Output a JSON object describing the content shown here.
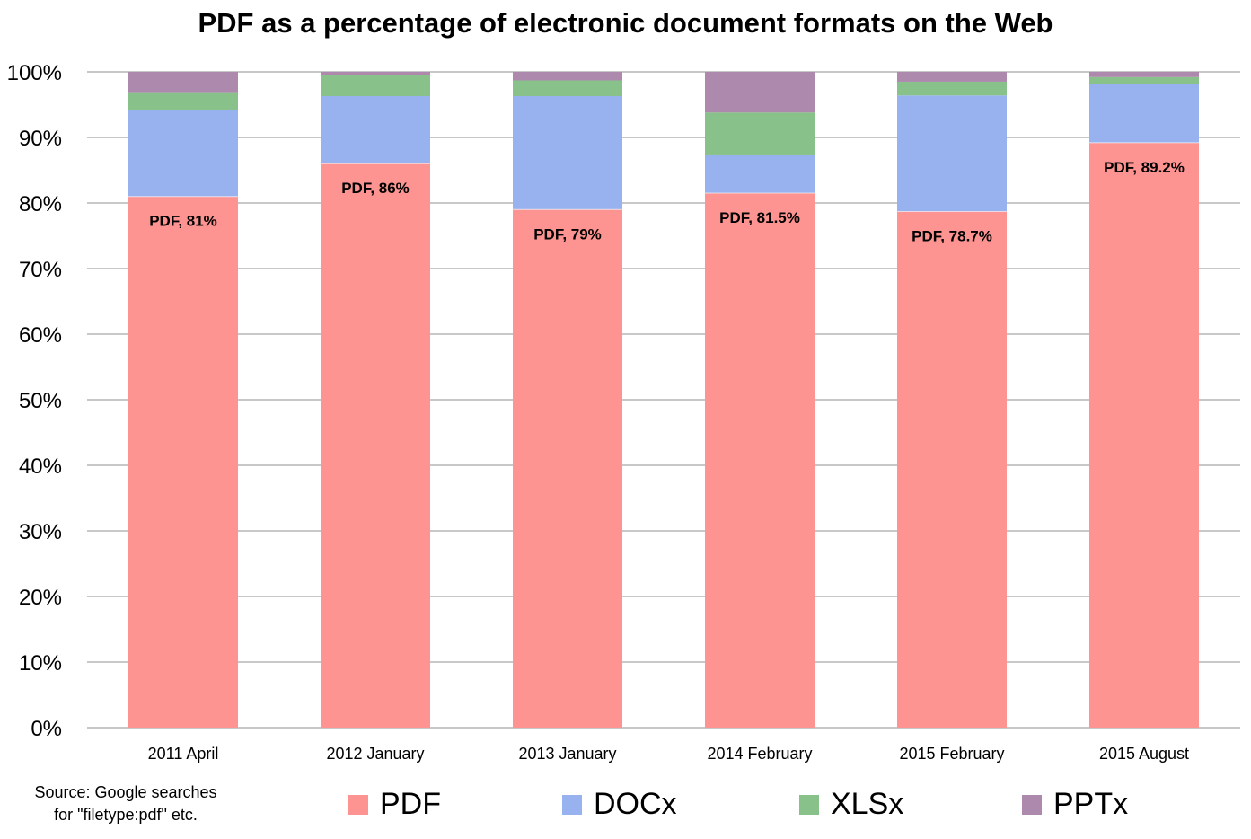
{
  "colors": {
    "PDF": "#fe9491",
    "DOCx": "#97b2ee",
    "XLSx": "#88c28a",
    "PPTx": "#ad89ae",
    "grid": "#a6a6a6",
    "separator": "#ffffff"
  },
  "source_note": {
    "line1": "Source: Google searches",
    "line2": "for \"filetype:pdf\" etc."
  },
  "chart_data": {
    "type": "bar",
    "stacked": true,
    "title": "PDF as a percentage of electronic document formats on the Web",
    "xlabel": "",
    "ylabel": "",
    "ylim": [
      0,
      100
    ],
    "yticks": [
      0,
      10,
      20,
      30,
      40,
      50,
      60,
      70,
      80,
      90,
      100
    ],
    "ytick_labels": [
      "0%",
      "10%",
      "20%",
      "30%",
      "40%",
      "50%",
      "60%",
      "70%",
      "80%",
      "90%",
      "100%"
    ],
    "grid": true,
    "legend_position": "bottom",
    "categories": [
      "2011 April",
      "2012 January",
      "2013 January",
      "2014 February",
      "2015 February",
      "2015 August"
    ],
    "series": [
      {
        "name": "PDF",
        "values": [
          81,
          86,
          79,
          81.5,
          78.7,
          89.2
        ]
      },
      {
        "name": "DOCx",
        "values": [
          13.2,
          10.3,
          17.3,
          5.9,
          17.7,
          8.9
        ]
      },
      {
        "name": "XLSx",
        "values": [
          2.7,
          3.2,
          2.4,
          6.4,
          2.1,
          1.1
        ]
      },
      {
        "name": "PPTx",
        "values": [
          3.1,
          0.5,
          1.3,
          6.2,
          1.5,
          0.8
        ]
      }
    ],
    "data_labels": [
      "PDF, 81%",
      "PDF, 86%",
      "PDF, 79%",
      "PDF, 81.5%",
      "PDF, 78.7%",
      "PDF, 89.2%"
    ]
  }
}
